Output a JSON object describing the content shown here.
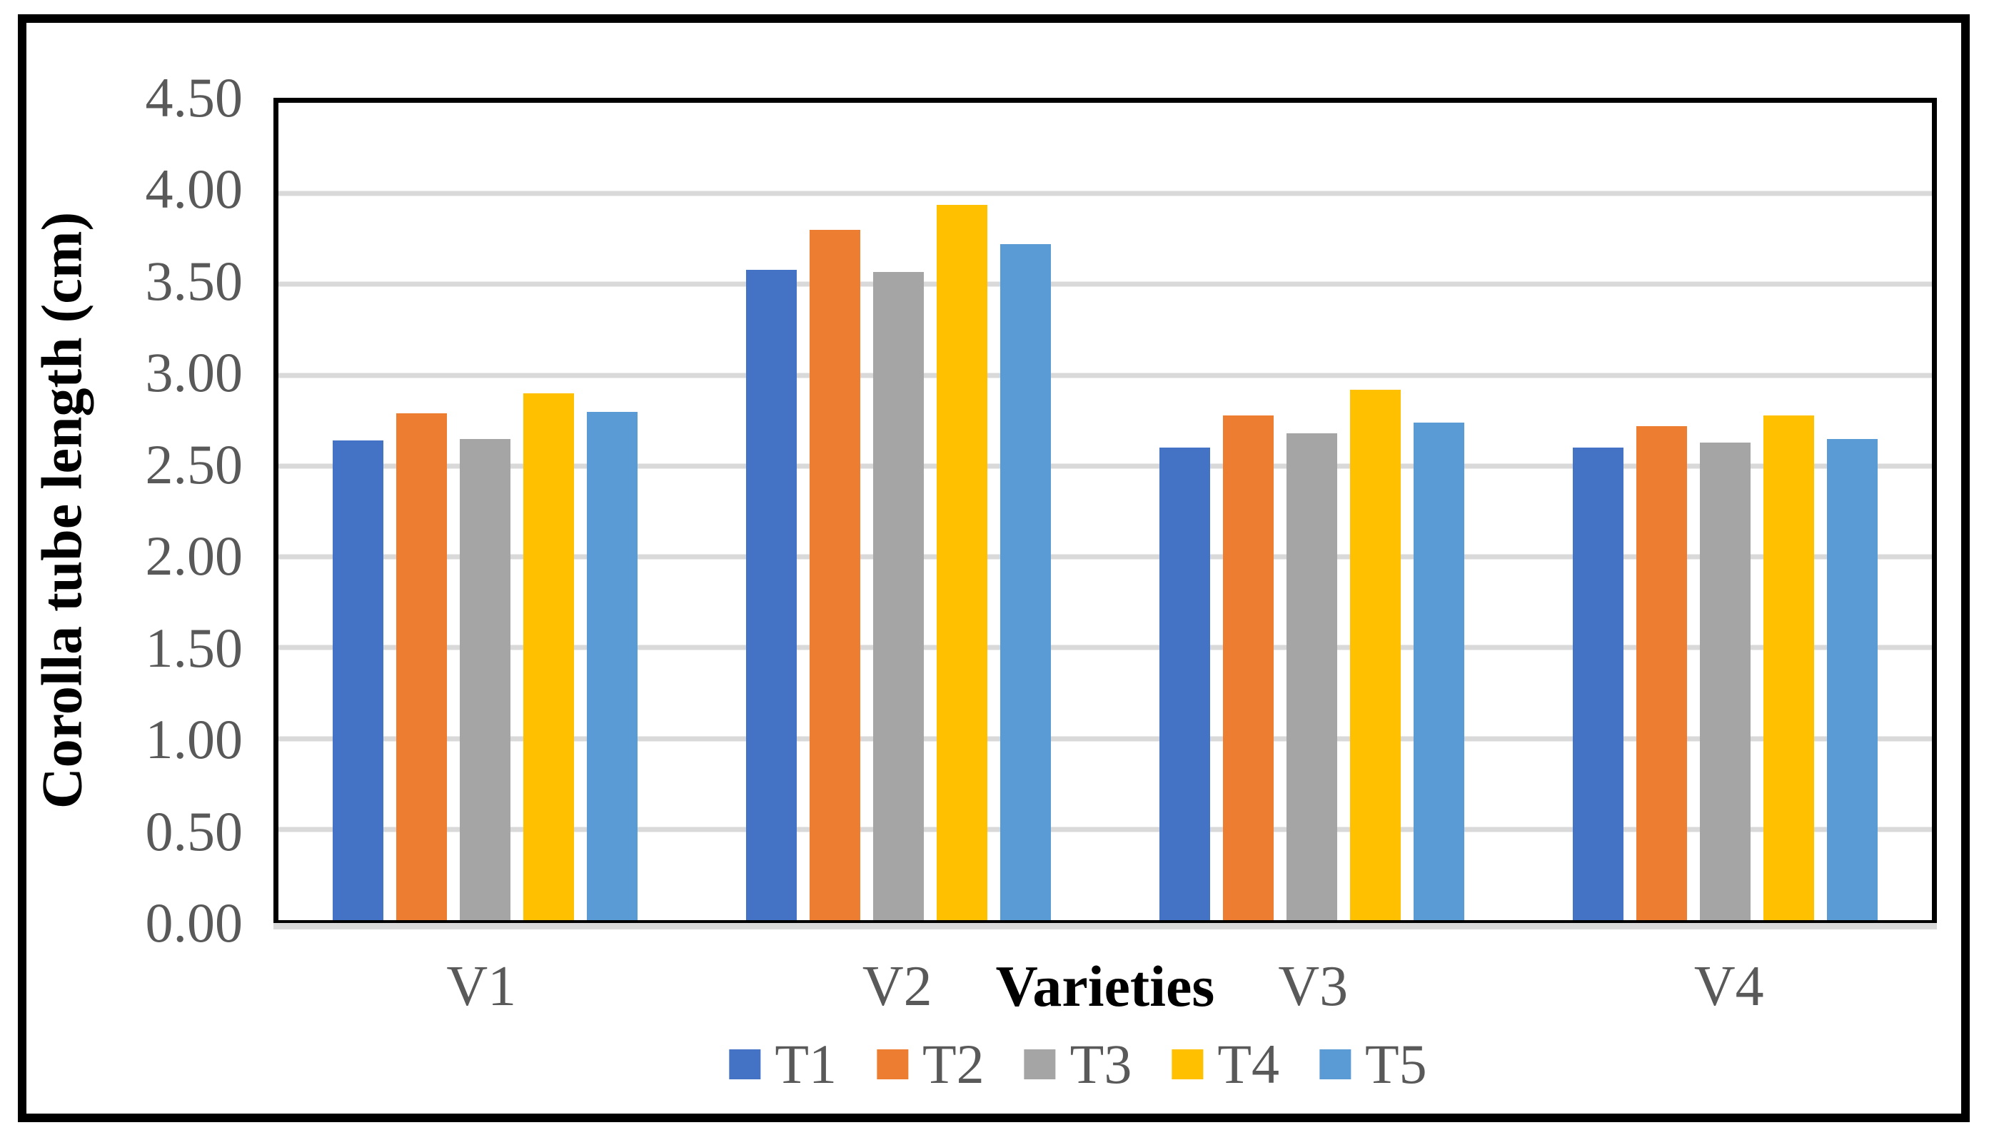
{
  "figure": {
    "background": "#FFFFFF",
    "frame_color": "#000000"
  },
  "chart_data": {
    "type": "bar",
    "title": "",
    "categories": [
      "V1",
      "V2",
      "V3",
      "V4"
    ],
    "series": [
      {
        "name": "T1",
        "color": "#4472C4",
        "values": [
          2.64,
          3.58,
          2.6,
          2.6
        ]
      },
      {
        "name": "T2",
        "color": "#ED7D31",
        "values": [
          2.79,
          3.8,
          2.78,
          2.72
        ]
      },
      {
        "name": "T3",
        "color": "#A5A5A5",
        "values": [
          2.65,
          3.57,
          2.68,
          2.63
        ]
      },
      {
        "name": "T4",
        "color": "#FFC000",
        "values": [
          2.9,
          3.94,
          2.92,
          2.78
        ]
      },
      {
        "name": "T5",
        "color": "#5B9BD5",
        "values": [
          2.8,
          3.72,
          2.74,
          2.65
        ]
      }
    ],
    "xlabel": "Varieties",
    "ylabel": "Corolla tube length (cm)",
    "ylim": [
      0,
      4.5
    ],
    "ytick_step": 0.5,
    "yticks": [
      {
        "value": 4.5,
        "label": "4.50"
      },
      {
        "value": 4.0,
        "label": "4.00"
      },
      {
        "value": 3.5,
        "label": "3.50"
      },
      {
        "value": 3.0,
        "label": "3.00"
      },
      {
        "value": 2.5,
        "label": "2.50"
      },
      {
        "value": 2.0,
        "label": "2.00"
      },
      {
        "value": 1.5,
        "label": "1.50"
      },
      {
        "value": 1.0,
        "label": "1.00"
      },
      {
        "value": 0.5,
        "label": "0.50"
      },
      {
        "value": 0.0,
        "label": "0.00"
      }
    ],
    "grid": true,
    "legend_position": "bottom-center",
    "colors": {
      "gridline": "#D9D9D9",
      "axis_line": "#000000",
      "tick_label": "#595959",
      "category_label": "#595959",
      "legend_label": "#595959",
      "axis_title": "#000000"
    }
  }
}
